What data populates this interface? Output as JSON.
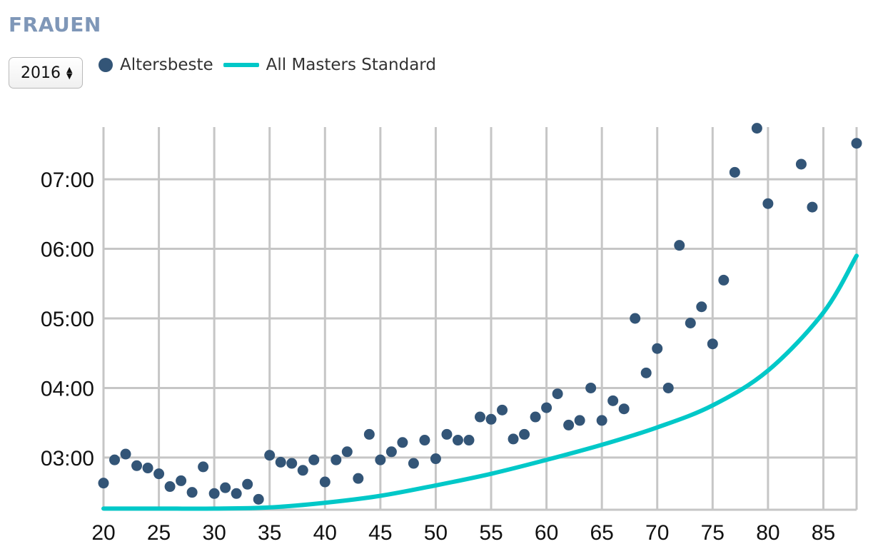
{
  "header": {
    "title": "FRAUEN"
  },
  "controls": {
    "year": "2016"
  },
  "legend": {
    "dots_label": "Altersbeste",
    "line_label": "All Masters Standard"
  },
  "colors": {
    "dots": "#335577",
    "line": "#00c8c8",
    "grid": "#c6c6c6",
    "title": "#7f97b8"
  },
  "chart_data": {
    "type": "scatter",
    "title": "FRAUEN",
    "xlabel": "",
    "ylabel": "",
    "xlim": [
      20,
      88
    ],
    "ylim": [
      "02:15",
      "07:45"
    ],
    "grid": true,
    "legend_position": "top-left",
    "x_ticks": [
      "20",
      "25",
      "30",
      "35",
      "40",
      "45",
      "50",
      "55",
      "60",
      "65",
      "70",
      "75",
      "80",
      "85"
    ],
    "y_ticks": [
      "03:00",
      "04:00",
      "05:00",
      "06:00",
      "07:00"
    ],
    "series": [
      {
        "name": "Altersbeste",
        "mark": "dot",
        "points": [
          [
            20,
            "02:38"
          ],
          [
            21,
            "02:58"
          ],
          [
            22,
            "03:03"
          ],
          [
            23,
            "02:53"
          ],
          [
            24,
            "02:51"
          ],
          [
            25,
            "02:46"
          ],
          [
            26,
            "02:35"
          ],
          [
            27,
            "02:40"
          ],
          [
            28,
            "02:30"
          ],
          [
            29,
            "02:52"
          ],
          [
            30,
            "02:29"
          ],
          [
            31,
            "02:34"
          ],
          [
            32,
            "02:29"
          ],
          [
            33,
            "02:37"
          ],
          [
            34,
            "02:24"
          ],
          [
            35,
            "03:02"
          ],
          [
            36,
            "02:56"
          ],
          [
            37,
            "02:55"
          ],
          [
            38,
            "02:49"
          ],
          [
            39,
            "02:58"
          ],
          [
            40,
            "02:39"
          ],
          [
            41,
            "02:58"
          ],
          [
            42,
            "03:05"
          ],
          [
            43,
            "02:42"
          ],
          [
            44,
            "03:20"
          ],
          [
            45,
            "02:58"
          ],
          [
            46,
            "03:05"
          ],
          [
            47,
            "03:13"
          ],
          [
            48,
            "02:55"
          ],
          [
            49,
            "03:15"
          ],
          [
            50,
            "02:59"
          ],
          [
            51,
            "03:20"
          ],
          [
            52,
            "03:15"
          ],
          [
            53,
            "03:15"
          ],
          [
            54,
            "03:35"
          ],
          [
            55,
            "03:33"
          ],
          [
            56,
            "03:41"
          ],
          [
            57,
            "03:16"
          ],
          [
            58,
            "03:20"
          ],
          [
            59,
            "03:35"
          ],
          [
            60,
            "03:43"
          ],
          [
            61,
            "03:55"
          ],
          [
            62,
            "03:28"
          ],
          [
            63,
            "03:32"
          ],
          [
            64,
            "04:00"
          ],
          [
            65,
            "03:32"
          ],
          [
            66,
            "03:49"
          ],
          [
            67,
            "03:42"
          ],
          [
            68,
            "05:00"
          ],
          [
            69,
            "04:13"
          ],
          [
            70,
            "04:34"
          ],
          [
            71,
            "04:00"
          ],
          [
            72,
            "06:03"
          ],
          [
            73,
            "04:56"
          ],
          [
            74,
            "05:10"
          ],
          [
            75,
            "04:38"
          ],
          [
            76,
            "05:33"
          ],
          [
            77,
            "07:06"
          ],
          [
            79,
            "07:44"
          ],
          [
            80,
            "06:39"
          ],
          [
            83,
            "07:13"
          ],
          [
            84,
            "06:36"
          ],
          [
            88,
            "07:31"
          ]
        ]
      },
      {
        "name": "All Masters Standard",
        "mark": "line",
        "points": [
          [
            20,
            "02:16"
          ],
          [
            25,
            "02:16"
          ],
          [
            30,
            "02:16"
          ],
          [
            35,
            "02:17"
          ],
          [
            40,
            "02:21"
          ],
          [
            45,
            "02:27"
          ],
          [
            50,
            "02:36"
          ],
          [
            55,
            "02:46"
          ],
          [
            60,
            "02:58"
          ],
          [
            65,
            "03:11"
          ],
          [
            70,
            "03:26"
          ],
          [
            75,
            "03:45"
          ],
          [
            80,
            "04:15"
          ],
          [
            85,
            "05:05"
          ],
          [
            88,
            "05:54"
          ]
        ]
      }
    ]
  }
}
